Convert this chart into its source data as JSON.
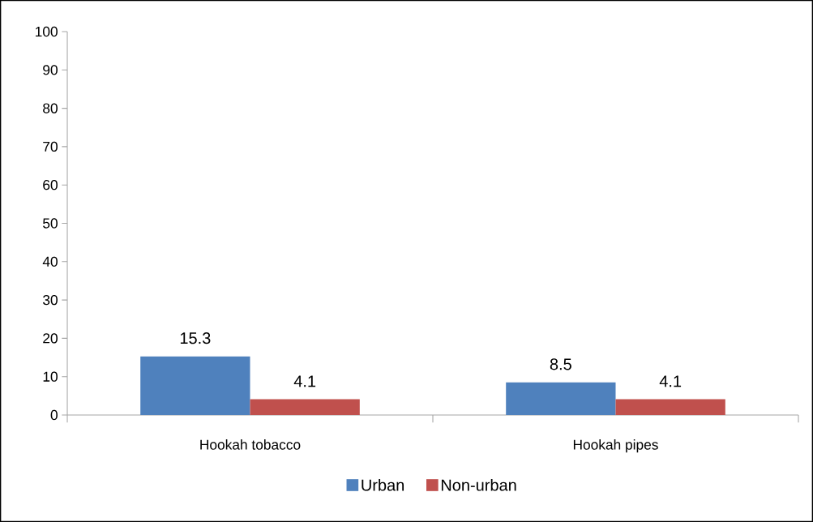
{
  "chart_data": {
    "type": "bar",
    "categories": [
      "Hookah tobacco",
      "Hookah pipes"
    ],
    "series": [
      {
        "name": "Urban",
        "color": "#4f81bd",
        "values": [
          15.3,
          8.5
        ]
      },
      {
        "name": "Non-urban",
        "color": "#c0504d",
        "values": [
          4.1,
          4.1
        ]
      }
    ],
    "ylim": [
      0,
      100
    ],
    "yticks": [
      0,
      10,
      20,
      30,
      40,
      50,
      60,
      70,
      80,
      90,
      100
    ],
    "data_labels": true,
    "legend": "bottom",
    "grid": false
  }
}
